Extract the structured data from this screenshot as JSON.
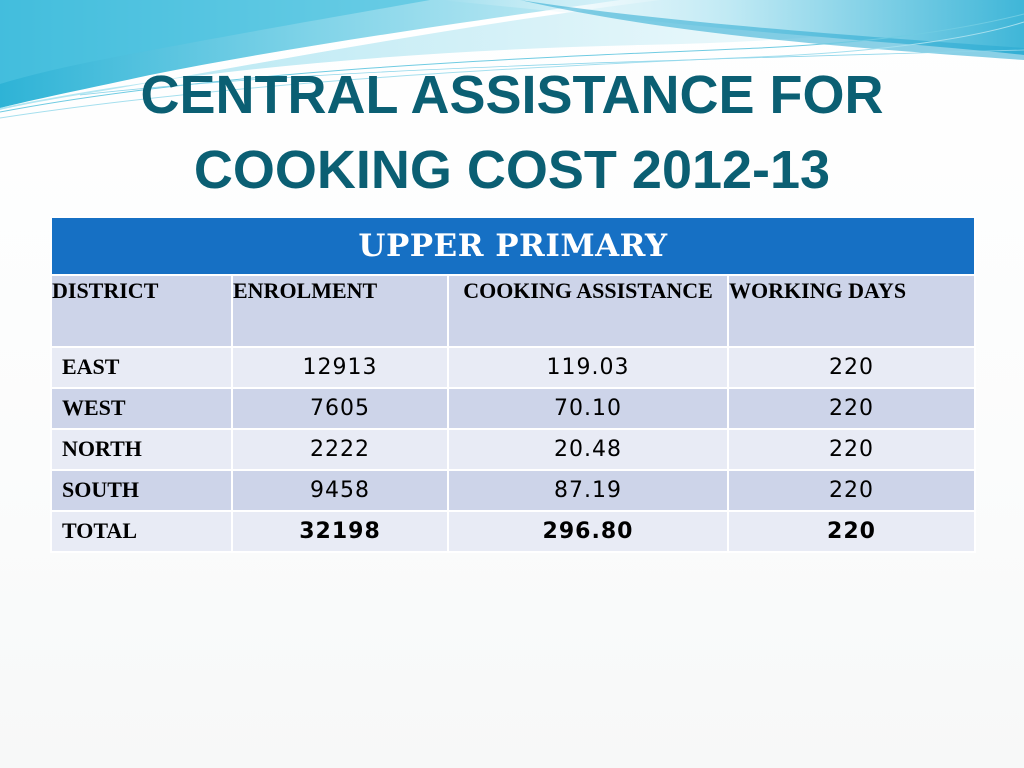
{
  "slide": {
    "title_line1": "CENTRAL ASSISTANCE FOR",
    "title_line2": "COOKING COST 2012-13",
    "title_color": "#0b5f73"
  },
  "table": {
    "banner": "UPPER PRIMARY",
    "banner_color": "#1670c4",
    "headers": [
      "DISTRICT",
      "ENROLMENT",
      "COOKING ASSISTANCE",
      "WORKING DAYS"
    ],
    "rows": [
      {
        "district": "EAST",
        "enrolment": "12913",
        "cooking_assistance": "119.03",
        "working_days": "220"
      },
      {
        "district": "WEST",
        "enrolment": "7605",
        "cooking_assistance": "70.10",
        "working_days": "220"
      },
      {
        "district": "NORTH",
        "enrolment": "2222",
        "cooking_assistance": "20.48",
        "working_days": "220"
      },
      {
        "district": "SOUTH",
        "enrolment": "9458",
        "cooking_assistance": "87.19",
        "working_days": "220"
      }
    ],
    "total": {
      "district": "TOTAL",
      "enrolment": "32198",
      "cooking_assistance": "296.80",
      "working_days": "220"
    }
  }
}
